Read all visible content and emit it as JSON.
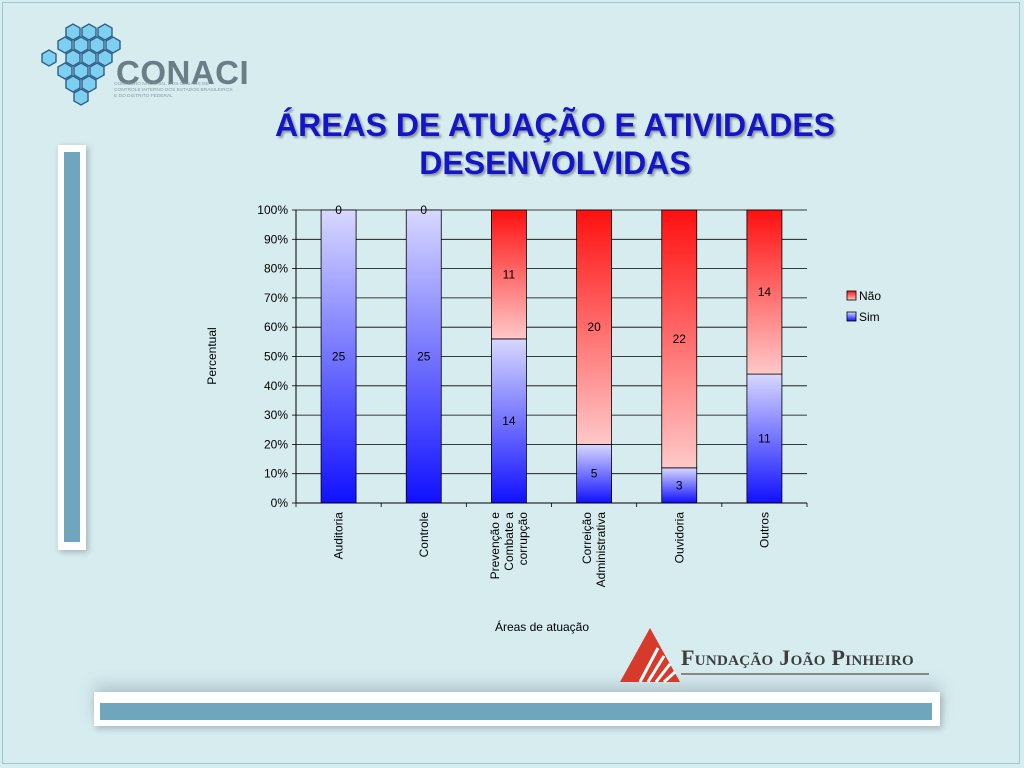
{
  "header": {
    "logo_text": "CONACI",
    "logo_subtitle": "CONSELHO NACIONAL DOS ÓRGÃOS DE CONTROLE INTERNO DOS ESTADOS BRASILEIROS E DO DISTRITO FEDERAL",
    "title_line1": "ÁREAS DE ATUAÇÃO E ATIVIDADES",
    "title_line2": "DESENVOLVIDAS"
  },
  "footer": {
    "logo_text": "Fundação João Pinheiro"
  },
  "colors": {
    "sim": "#2020ff",
    "nao": "#ff1a1a",
    "title": "#1515c8",
    "accent": "#6fa6bd"
  },
  "chart_data": {
    "type": "bar",
    "stacked": true,
    "percent": true,
    "categories": [
      [
        "Auditoria"
      ],
      [
        "Controle"
      ],
      [
        "Prevenção e",
        "Combate a",
        "corrupção"
      ],
      [
        "Correição",
        "Administrativa"
      ],
      [
        "Ouvidoria"
      ],
      [
        "Outros"
      ]
    ],
    "series": [
      {
        "name": "Sim",
        "values": [
          25,
          25,
          14,
          5,
          3,
          11
        ]
      },
      {
        "name": "Não",
        "values": [
          0,
          0,
          11,
          20,
          22,
          14
        ]
      }
    ],
    "xlabel": "Áreas de atuação",
    "ylabel": "Percentual",
    "ylim": [
      0,
      100
    ],
    "yticks": [
      "0%",
      "10%",
      "20%",
      "30%",
      "40%",
      "50%",
      "60%",
      "70%",
      "80%",
      "90%",
      "100%"
    ],
    "grid": true,
    "legend": [
      "Não",
      "Sim"
    ],
    "legend_position": "right"
  }
}
